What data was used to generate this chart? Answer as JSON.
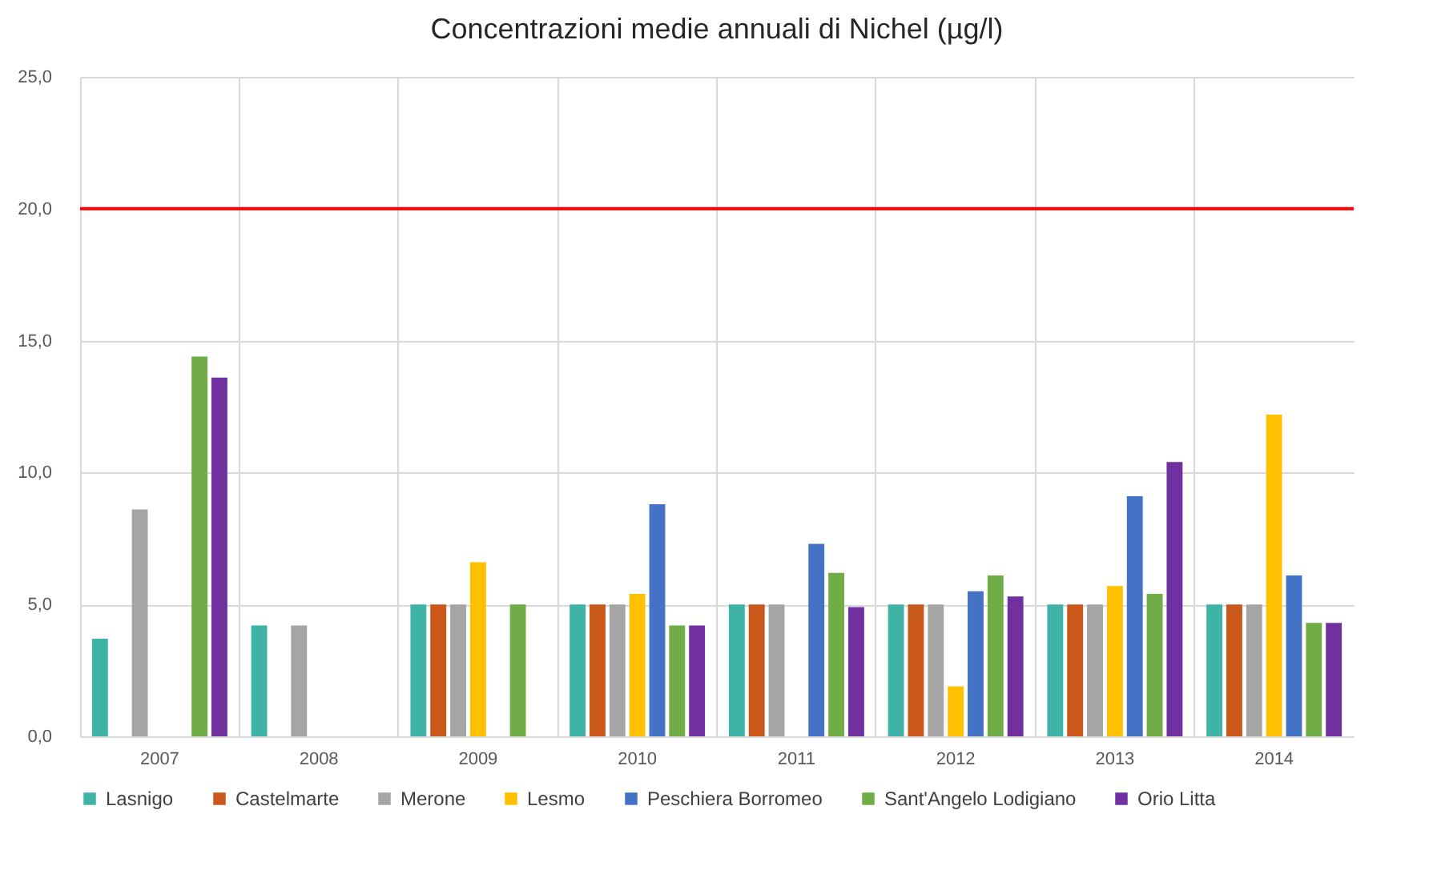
{
  "chart_data": {
    "type": "bar",
    "title": "Concentrazioni medie annuali di Nichel (µg/l)",
    "categories": [
      "2007",
      "2008",
      "2009",
      "2010",
      "2011",
      "2012",
      "2013",
      "2014"
    ],
    "series": [
      {
        "name": "Lasnigo",
        "color": "#3fb3a6",
        "values": [
          3.7,
          4.2,
          5.0,
          5.0,
          5.0,
          5.0,
          5.0,
          5.0
        ]
      },
      {
        "name": "Castelmarte",
        "color": "#c9581a",
        "values": [
          null,
          null,
          5.0,
          5.0,
          5.0,
          5.0,
          5.0,
          5.0
        ]
      },
      {
        "name": "Merone",
        "color": "#a5a5a5",
        "values": [
          8.6,
          4.2,
          5.0,
          5.0,
          5.0,
          5.0,
          5.0,
          5.0
        ]
      },
      {
        "name": "Lesmo",
        "color": "#ffc000",
        "values": [
          null,
          null,
          6.6,
          5.4,
          null,
          1.9,
          5.7,
          12.2
        ]
      },
      {
        "name": "Peschiera Borromeo",
        "color": "#4472c4",
        "values": [
          null,
          null,
          null,
          8.8,
          7.3,
          5.5,
          9.1,
          6.1
        ]
      },
      {
        "name": "Sant'Angelo Lodigiano",
        "color": "#70ad47",
        "values": [
          14.4,
          null,
          5.0,
          4.2,
          6.2,
          6.1,
          5.4,
          4.3
        ]
      },
      {
        "name": "Orio Litta",
        "color": "#7030a0",
        "values": [
          13.6,
          null,
          null,
          4.2,
          4.9,
          5.3,
          10.4,
          4.3
        ]
      }
    ],
    "ylim": [
      0,
      25
    ],
    "yticks": [
      {
        "value": 0,
        "label": "0,0"
      },
      {
        "value": 5,
        "label": "5,0"
      },
      {
        "value": 10,
        "label": "10,0"
      },
      {
        "value": 15,
        "label": "15,0"
      },
      {
        "value": 20,
        "label": "20,0"
      },
      {
        "value": 25,
        "label": "25,0"
      }
    ],
    "ref_lines": [
      {
        "axis": "y",
        "value": 20,
        "color": "#ff0000"
      }
    ],
    "grid": true,
    "legend": "bottom"
  }
}
